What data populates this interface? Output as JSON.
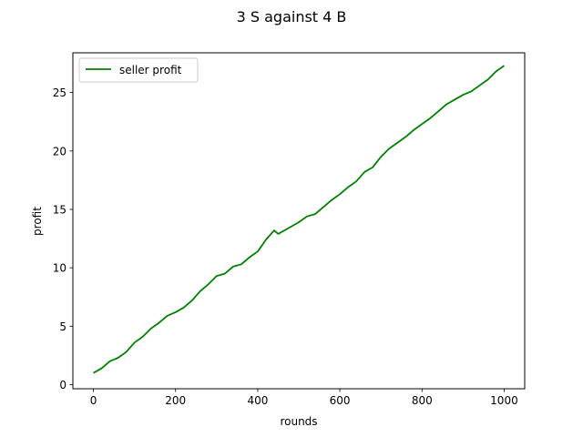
{
  "chart_data": {
    "type": "line",
    "title": "3 S against 4 B",
    "xlabel": "rounds",
    "ylabel": "profit",
    "xlim": [
      -50,
      1050
    ],
    "ylim": [
      -0.35,
      28.4
    ],
    "xticks": [
      0,
      200,
      400,
      600,
      800,
      1000
    ],
    "yticks": [
      0,
      5,
      10,
      15,
      20,
      25
    ],
    "grid": false,
    "legend_position": "top-left",
    "series": [
      {
        "name": "seller profit",
        "color": "#008000",
        "x": [
          0,
          20,
          40,
          60,
          80,
          100,
          120,
          140,
          160,
          180,
          200,
          220,
          240,
          260,
          280,
          300,
          320,
          340,
          360,
          380,
          400,
          420,
          440,
          450,
          460,
          480,
          500,
          520,
          540,
          560,
          580,
          600,
          620,
          640,
          660,
          680,
          700,
          720,
          740,
          760,
          780,
          800,
          820,
          840,
          860,
          880,
          900,
          920,
          940,
          960,
          980,
          1000
        ],
        "y": [
          1.0,
          1.4,
          2.0,
          2.3,
          2.8,
          3.6,
          4.1,
          4.8,
          5.3,
          5.9,
          6.2,
          6.6,
          7.2,
          8.0,
          8.6,
          9.3,
          9.5,
          10.1,
          10.3,
          10.9,
          11.4,
          12.4,
          13.2,
          12.9,
          13.1,
          13.5,
          13.9,
          14.4,
          14.6,
          15.2,
          15.8,
          16.3,
          16.9,
          17.4,
          18.2,
          18.6,
          19.5,
          20.2,
          20.7,
          21.2,
          21.8,
          22.3,
          22.8,
          23.4,
          24.0,
          24.4,
          24.8,
          25.1,
          25.6,
          26.1,
          26.8,
          27.3
        ]
      }
    ]
  },
  "legend": {
    "label": "seller profit"
  }
}
